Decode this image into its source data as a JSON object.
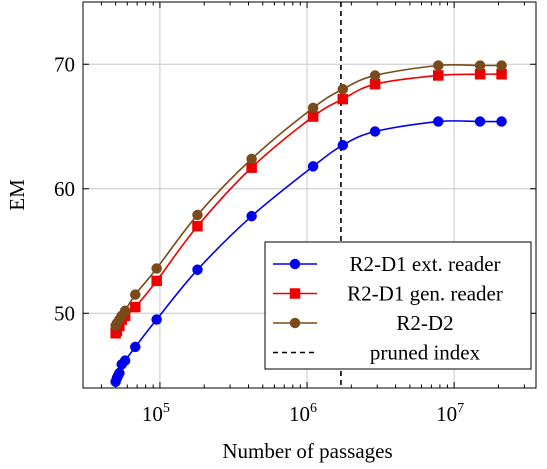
{
  "chart_data": {
    "type": "line",
    "xscale": "log",
    "xlabel": "Number of passages",
    "ylabel": "EM",
    "xlim": [
      30000,
      36000000
    ],
    "ylim": [
      44,
      75
    ],
    "grid": true,
    "legend_position": "bottom-right",
    "x_ticks": [
      {
        "value": 100000,
        "base": "10",
        "exp": "5"
      },
      {
        "value": 1000000,
        "base": "10",
        "exp": "6"
      },
      {
        "value": 10000000,
        "base": "10",
        "exp": "7"
      }
    ],
    "y_ticks": [
      {
        "value": 50,
        "label": "50"
      },
      {
        "value": 60,
        "label": "60"
      },
      {
        "value": 70,
        "label": "70"
      }
    ],
    "series": [
      {
        "name": "R2-D1 ext. reader",
        "color": "#0000ee",
        "marker": "circle",
        "x": [
          50000,
          51000,
          52000,
          53000,
          55000,
          58000,
          68000,
          95000,
          180000,
          420000,
          1100000,
          1750000,
          2900000,
          7800000,
          15000000,
          21000000
        ],
        "y": [
          44.5,
          44.8,
          45.0,
          45.2,
          45.9,
          46.2,
          47.3,
          49.5,
          53.5,
          57.8,
          61.8,
          63.5,
          64.6,
          65.4,
          65.4,
          65.4
        ]
      },
      {
        "name": "R2-D1 gen. reader",
        "color": "#ee0000",
        "marker": "square",
        "x": [
          50000,
          51000,
          53000,
          55000,
          58000,
          68000,
          95000,
          180000,
          420000,
          1100000,
          1750000,
          2900000,
          7800000,
          15000000,
          21000000
        ],
        "y": [
          48.4,
          48.6,
          49.0,
          49.5,
          49.8,
          50.5,
          52.6,
          57.0,
          61.7,
          65.8,
          67.2,
          68.4,
          69.1,
          69.2,
          69.2
        ]
      },
      {
        "name": "R2-D2",
        "color": "#7a4a1a",
        "marker": "circle",
        "x": [
          50000,
          51000,
          53000,
          55000,
          58000,
          68000,
          95000,
          180000,
          420000,
          1100000,
          1750000,
          2900000,
          7800000,
          15000000,
          21000000
        ],
        "y": [
          49.0,
          49.2,
          49.5,
          49.8,
          50.2,
          51.5,
          53.6,
          57.9,
          62.4,
          66.5,
          68.0,
          69.1,
          69.9,
          69.9,
          69.9
        ]
      }
    ],
    "vline": {
      "name": "pruned index",
      "x": 1700000,
      "style": "dashed",
      "color": "#000000"
    }
  }
}
